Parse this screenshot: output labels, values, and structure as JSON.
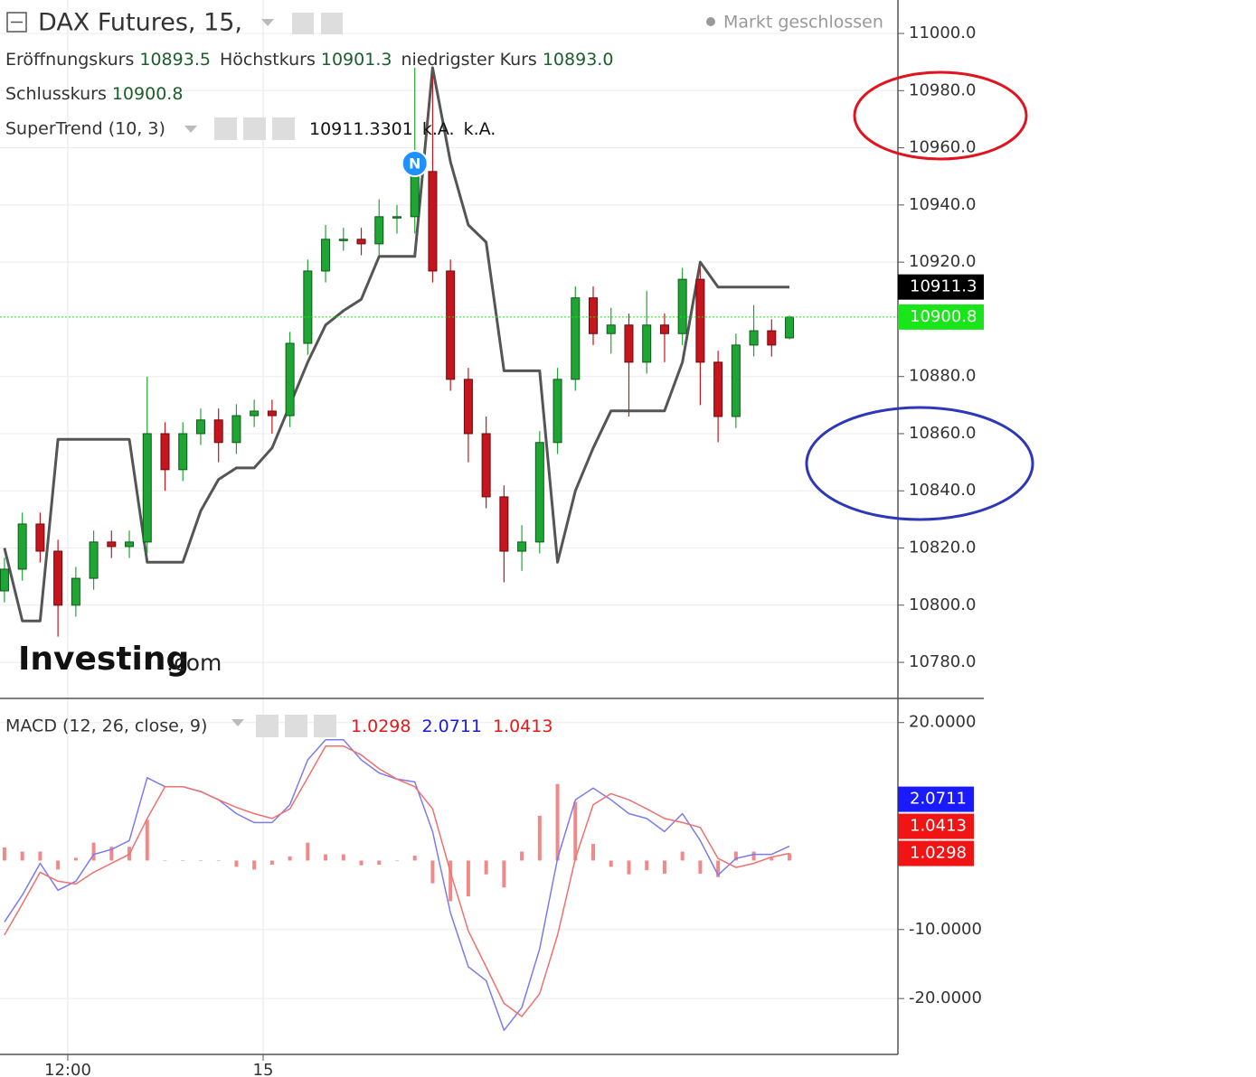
{
  "chart_data": [
    {
      "type": "candlestick",
      "title": "DAX Futures, 15,",
      "status": "Markt geschlossen",
      "ohlc_legend": [
        {
          "label": "Eröffnungskurs",
          "value": "10893.5"
        },
        {
          "label": "Höchstkurs",
          "value": "10901.3"
        },
        {
          "label": "niedrigster Kurs",
          "value": "10893.0"
        },
        {
          "label": "Schlusskurs",
          "value": "10900.8"
        }
      ],
      "indicator_legend": {
        "label": "SuperTrend (10, 3)",
        "values": [
          "10911.3301",
          "k.A.",
          "k.A."
        ]
      },
      "news_marker": "N",
      "logo": {
        "brand": "Investing",
        "suffix": ".com"
      },
      "x": [
        0,
        1,
        2,
        3,
        4,
        5,
        6,
        7,
        8,
        9,
        10,
        11,
        12,
        13,
        14,
        15,
        16,
        17,
        18,
        19,
        20,
        21,
        22,
        23,
        24,
        25,
        26,
        27,
        28,
        29,
        30,
        31,
        32,
        33,
        34,
        35,
        36,
        37,
        38,
        39,
        40,
        41,
        42,
        43,
        44
      ],
      "xlim": [
        -0.25,
        50.08
      ],
      "xticks": [
        {
          "value": 3.55,
          "label": "12:00"
        },
        {
          "value": 14.5,
          "label": "15"
        }
      ],
      "open": [
        10805,
        10812.6,
        10828.4,
        10818.9,
        10800,
        10809.4,
        10822.1,
        10820.5,
        10822.1,
        10860,
        10847.4,
        10860,
        10864.8,
        10856.9,
        10866.3,
        10867.9,
        10866.3,
        10891.6,
        10916.9,
        10928,
        10928,
        10926.4,
        10935.9,
        10935.9,
        10951.7,
        10916.9,
        10879,
        10860,
        10837.9,
        10818.9,
        10822.1,
        10856.9,
        10879,
        10907.5,
        10895,
        10898,
        10885,
        10898,
        10895,
        10914,
        10885,
        10866,
        10891,
        10896,
        10893.5
      ],
      "high": [
        10816.6,
        10832.4,
        10832.4,
        10822.9,
        10813.4,
        10826.1,
        10826.1,
        10826.1,
        10880,
        10864,
        10864,
        10868.8,
        10868.8,
        10870.3,
        10871.9,
        10871.9,
        10895.6,
        10920.9,
        10933,
        10932,
        10932,
        10942,
        10940,
        10988,
        10985,
        10920.9,
        10883,
        10866,
        10841.9,
        10828,
        10860.9,
        10883,
        10911.5,
        10911.5,
        10904,
        10902,
        10910,
        10902,
        10918,
        10918,
        10889,
        10895,
        10905,
        10900,
        10901.3
      ],
      "low": [
        10801,
        10808.6,
        10814.9,
        10789,
        10796,
        10805.4,
        10816.5,
        10816.5,
        10818.1,
        10840,
        10843.4,
        10856,
        10850,
        10852.9,
        10862.3,
        10860,
        10862.3,
        10887.6,
        10912.9,
        10924,
        10922.4,
        10922.4,
        10930,
        10930,
        10912.9,
        10875,
        10850,
        10833.9,
        10808,
        10812,
        10818.1,
        10852.9,
        10875,
        10891,
        10888,
        10866,
        10881,
        10885,
        10891,
        10870,
        10857,
        10862,
        10887,
        10887,
        10893.0
      ],
      "close": [
        10812.6,
        10828.4,
        10818.9,
        10800,
        10809.4,
        10822.1,
        10820.5,
        10822.1,
        10860,
        10847.4,
        10860,
        10864.8,
        10856.9,
        10866.3,
        10867.9,
        10866.3,
        10891.6,
        10916.9,
        10928,
        10928,
        10926.4,
        10935.9,
        10935.9,
        10951.7,
        10916.9,
        10879,
        10860,
        10837.9,
        10818.9,
        10822.1,
        10856.9,
        10879,
        10907.5,
        10895,
        10898,
        10885,
        10898,
        10895,
        10914,
        10885,
        10866,
        10891,
        10896,
        10891,
        10900.8
      ],
      "up_color": "#1fa534",
      "down_color": "#c4161c",
      "supertrend": {
        "color": "#555555",
        "values": [
          10820,
          10794.5,
          10794.5,
          10858,
          10858,
          10858,
          10858,
          10858,
          10815,
          10815,
          10815,
          10833,
          10844,
          10848,
          10848,
          10855,
          10870,
          10885,
          10898,
          10903,
          10907,
          10922,
          10922,
          10922,
          10988,
          10955,
          10933,
          10927,
          10882,
          10882,
          10882,
          10815,
          10840,
          10855,
          10868,
          10868,
          10868,
          10868,
          10885,
          10920,
          10911.3,
          10911.3,
          10911.3,
          10911.3,
          10911.3
        ]
      },
      "ylim": [
        10767.7,
        11011.7
      ],
      "yticks": [
        {
          "value": 11000,
          "label": "11000.0"
        },
        {
          "value": 10980,
          "label": "10980.0"
        },
        {
          "value": 10960,
          "label": "10960.0"
        },
        {
          "value": 10940,
          "label": "10940.0"
        },
        {
          "value": 10920,
          "label": "10920.0"
        },
        {
          "value": 10880,
          "label": "10880.0"
        },
        {
          "value": 10860,
          "label": "10860.0"
        },
        {
          "value": 10840,
          "label": "10840.0"
        },
        {
          "value": 10820,
          "label": "10820.0"
        },
        {
          "value": 10800,
          "label": "10800.0"
        },
        {
          "value": 10780,
          "label": "10780.0"
        }
      ],
      "badges": [
        {
          "value": 10911.3,
          "label": "10911.3",
          "color": "#000000",
          "line": false
        },
        {
          "value": 10900.8,
          "label": "10900.8",
          "color": "#19e619",
          "line": true
        }
      ],
      "grid": true
    },
    {
      "type": "macd",
      "legend": {
        "label": "MACD (12, 26, close, 9)",
        "values": [
          {
            "text": "1.0298",
            "color": "#e31a1a"
          },
          {
            "text": "2.0711",
            "color": "#1a1ad6"
          },
          {
            "text": "1.0413",
            "color": "#e31a1a"
          }
        ]
      },
      "series": [
        {
          "color": "#7b7bef",
          "values": [
            -8.9,
            -5,
            -0.4,
            -4.3,
            -3,
            0.9,
            1.6,
            2.9,
            12,
            10.7,
            10.7,
            10,
            8.8,
            6.8,
            5.5,
            5.5,
            8.1,
            14.6,
            17.5,
            17.5,
            14.6,
            12.7,
            11.8,
            11.4,
            4.2,
            -7.6,
            -15.4,
            -17.4,
            -24.6,
            -21.3,
            -12.8,
            0.3,
            8.8,
            10.5,
            8.8,
            6.8,
            6.1,
            4.2,
            6.8,
            2.9,
            -2.1,
            0.3,
            0.9,
            0.9,
            2.0711
          ]
        },
        {
          "color": "#f07070",
          "values": [
            -10.8,
            -6.3,
            -1.7,
            -3,
            -3.4,
            -1.7,
            -0.4,
            0.9,
            6.1,
            10.7,
            10.7,
            10,
            8.8,
            7.7,
            6.8,
            6.1,
            7.5,
            12,
            16.6,
            16.6,
            15.3,
            13.3,
            11.8,
            10.7,
            7.5,
            -1.7,
            -10.2,
            -15.4,
            -20.7,
            -22.6,
            -19.3,
            -10.8,
            0.3,
            8.1,
            9.7,
            8.8,
            7.5,
            6.1,
            5.5,
            4.8,
            0.3,
            -1,
            -0.4,
            0.5,
            1.0413
          ]
        }
      ],
      "histogram": {
        "color": "#f08a8a",
        "values": [
          1.9,
          1.3,
          1.3,
          -1.3,
          0.4,
          2.6,
          2,
          2,
          5.9,
          0,
          0,
          0,
          0,
          -0.9,
          -1.3,
          -0.6,
          0.6,
          2.6,
          0.9,
          0.9,
          -0.7,
          -0.6,
          0,
          0.7,
          -3.3,
          -5.9,
          -5.2,
          -2,
          -3.9,
          1.3,
          6.5,
          11.1,
          8.5,
          2.4,
          -0.9,
          -2,
          -1.4,
          -1.9,
          1.3,
          -1.9,
          -2.4,
          1.3,
          1.3,
          0.4,
          1.0298
        ]
      },
      "ylim": [
        -28.1,
        23.5
      ],
      "yticks": [
        {
          "value": 20,
          "label": "20.0000"
        },
        {
          "value": -10,
          "label": "-10.0000"
        },
        {
          "value": -20,
          "label": "-20.0000"
        }
      ],
      "badges": [
        {
          "value": 2.0711,
          "label": "2.0711",
          "color": "#1a1aff"
        },
        {
          "value": 1.0413,
          "label": "1.0413",
          "color": "#f01414"
        },
        {
          "value": 1.0298,
          "label": "1.0298",
          "color": "#f01414"
        }
      ],
      "grid": true
    }
  ]
}
